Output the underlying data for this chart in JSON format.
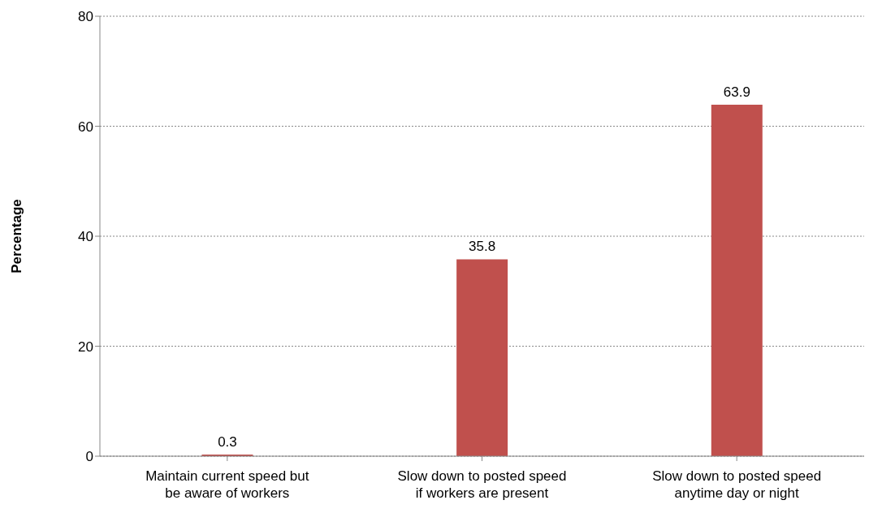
{
  "chart_data": {
    "type": "bar",
    "ylabel": "Percentage",
    "categories": [
      "Maintain current speed but be aware of workers",
      "Slow down to posted speed if workers are present",
      "Slow down to posted speed anytime day or night"
    ],
    "values": [
      0.3,
      35.8,
      63.9
    ],
    "color": "#c0504d",
    "ylim": [
      0,
      80
    ],
    "yticks": [
      0,
      20,
      40,
      60,
      80
    ],
    "grid": "y",
    "data_labels": true,
    "legend": false
  }
}
